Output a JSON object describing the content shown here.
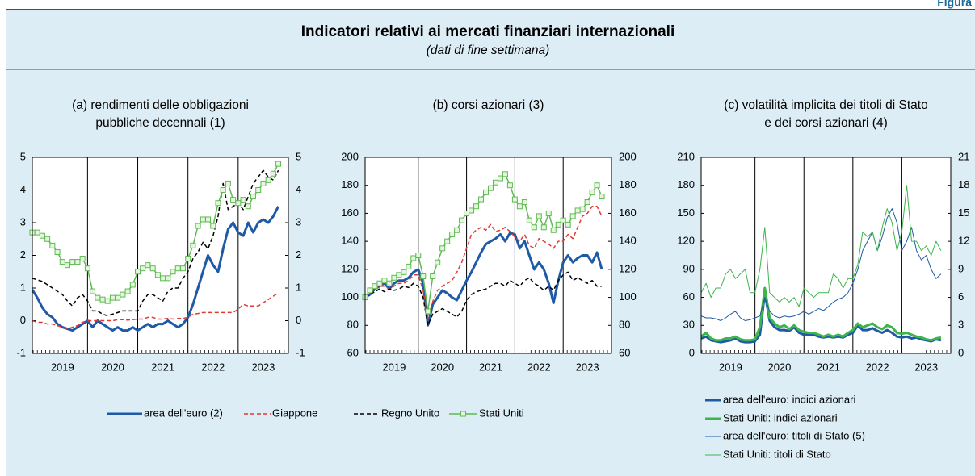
{
  "header": {
    "label": "Figura",
    "title": "Indicatori relativi ai mercati finanziari internazionali",
    "subtitle": "(dati di fine settimana)"
  },
  "chart_data": [
    {
      "type": "line",
      "title": [
        "(a) rendimenti delle obbligazioni",
        "pubbliche decennali (1)"
      ],
      "x": [
        2018.9,
        2019,
        2019.1,
        2019.2,
        2019.3,
        2019.4,
        2019.5,
        2019.6,
        2019.7,
        2019.8,
        2019.9,
        2020,
        2020.1,
        2020.2,
        2020.3,
        2020.4,
        2020.5,
        2020.6,
        2020.7,
        2020.8,
        2020.9,
        2021,
        2021.1,
        2021.2,
        2021.3,
        2021.4,
        2021.5,
        2021.6,
        2021.7,
        2021.8,
        2021.9,
        2022,
        2022.1,
        2022.2,
        2022.3,
        2022.4,
        2022.5,
        2022.6,
        2022.7,
        2022.8,
        2022.9,
        2023,
        2023.1,
        2023.2,
        2023.3,
        2023.4,
        2023.5,
        2023.6,
        2023.7,
        2023.8
      ],
      "xlim": [
        2018.9,
        2024
      ],
      "xticks": [
        {
          "value": 2019.5,
          "label": "2019"
        },
        {
          "value": 2020.5,
          "label": "2020"
        },
        {
          "value": 2021.5,
          "label": "2021"
        },
        {
          "value": 2022.5,
          "label": "2022"
        },
        {
          "value": 2023.5,
          "label": "2023"
        }
      ],
      "xgrid": [
        2020,
        2021,
        2022,
        2023
      ],
      "ylim": [
        -1,
        5
      ],
      "yticks": [
        -1,
        0,
        1,
        2,
        3,
        4,
        5
      ],
      "legend": "below",
      "series": [
        {
          "name": "area dell'euro (2)",
          "color": "#1f5aa6",
          "line": "solid",
          "weight": "heavy",
          "values": [
            0.95,
            0.7,
            0.4,
            0.2,
            0.1,
            -0.1,
            -0.2,
            -0.25,
            -0.3,
            -0.2,
            -0.1,
            0,
            -0.2,
            0,
            -0.1,
            -0.2,
            -0.3,
            -0.2,
            -0.3,
            -0.3,
            -0.2,
            -0.3,
            -0.2,
            -0.1,
            -0.2,
            -0.1,
            -0.1,
            0,
            -0.1,
            -0.2,
            -0.1,
            0.1,
            0.5,
            1,
            1.5,
            2,
            1.7,
            1.5,
            2.2,
            2.8,
            3,
            2.7,
            2.6,
            3,
            2.7,
            3,
            3.1,
            3,
            3.2,
            3.5
          ]
        },
        {
          "name": "Giappone",
          "color": "#e03a35",
          "line": "dashed",
          "weight": "normal",
          "values": [
            0,
            -0.05,
            -0.05,
            -0.1,
            -0.1,
            -0.15,
            -0.2,
            -0.25,
            -0.2,
            -0.15,
            -0.05,
            0,
            0,
            0,
            0,
            0,
            0,
            0.03,
            0.03,
            0.02,
            0.03,
            0.05,
            0.05,
            0.1,
            0.1,
            0.05,
            0.05,
            0.07,
            0.05,
            0.07,
            0.07,
            0.1,
            0.2,
            0.22,
            0.25,
            0.25,
            0.25,
            0.25,
            0.25,
            0.25,
            0.25,
            0.35,
            0.5,
            0.45,
            0.45,
            0.45,
            0.55,
            0.65,
            0.75,
            0.85
          ]
        },
        {
          "name": "Regno Unito",
          "color": "#000000",
          "line": "dashed",
          "weight": "normal",
          "values": [
            1.3,
            1.25,
            1.2,
            1.1,
            1,
            0.9,
            0.8,
            0.6,
            0.45,
            0.7,
            0.8,
            0.6,
            0.3,
            0.3,
            0.2,
            0.15,
            0.2,
            0.25,
            0.3,
            0.3,
            0.3,
            0.3,
            0.6,
            0.8,
            0.8,
            0.7,
            0.6,
            0.9,
            1,
            1,
            1.3,
            1.5,
            1.9,
            2.1,
            2.4,
            2.2,
            2.6,
            3.2,
            4.2,
            3.4,
            3.5,
            3.6,
            3.4,
            3.8,
            4.2,
            4.4,
            4.6,
            4.4,
            4.3,
            4.6
          ]
        },
        {
          "name": "Stati Uniti",
          "color": "#5dbb4f",
          "line": "solid",
          "weight": "normal",
          "marker": "square",
          "values": [
            2.7,
            2.7,
            2.6,
            2.5,
            2.3,
            2.1,
            1.8,
            1.7,
            1.8,
            1.8,
            1.9,
            1.6,
            0.9,
            0.7,
            0.65,
            0.6,
            0.7,
            0.7,
            0.8,
            0.9,
            1.1,
            1.5,
            1.6,
            1.7,
            1.6,
            1.4,
            1.3,
            1.3,
            1.5,
            1.6,
            1.6,
            1.9,
            2.3,
            2.9,
            3.1,
            3.1,
            2.9,
            3.6,
            4,
            4.2,
            3.7,
            3.6,
            3.7,
            3.5,
            3.8,
            4,
            4.2,
            4.3,
            4.5,
            4.8
          ]
        }
      ]
    },
    {
      "type": "line",
      "title": [
        "(b) corsi azionari (3)"
      ],
      "x": [
        2018.9,
        2019,
        2019.1,
        2019.2,
        2019.3,
        2019.4,
        2019.5,
        2019.6,
        2019.7,
        2019.8,
        2019.9,
        2020,
        2020.1,
        2020.2,
        2020.3,
        2020.4,
        2020.5,
        2020.6,
        2020.7,
        2020.8,
        2020.9,
        2021,
        2021.1,
        2021.2,
        2021.3,
        2021.4,
        2021.5,
        2021.6,
        2021.7,
        2021.8,
        2021.9,
        2022,
        2022.1,
        2022.2,
        2022.3,
        2022.4,
        2022.5,
        2022.6,
        2022.7,
        2022.8,
        2022.9,
        2023,
        2023.1,
        2023.2,
        2023.3,
        2023.4,
        2023.5,
        2023.6,
        2023.7,
        2023.8
      ],
      "xlim": [
        2018.9,
        2024
      ],
      "xticks": [
        {
          "value": 2019.5,
          "label": "2019"
        },
        {
          "value": 2020.5,
          "label": "2020"
        },
        {
          "value": 2021.5,
          "label": "2021"
        },
        {
          "value": 2022.5,
          "label": "2022"
        },
        {
          "value": 2023.5,
          "label": "2023"
        }
      ],
      "xgrid": [
        2020,
        2021,
        2022,
        2023
      ],
      "ylim": [
        60,
        200
      ],
      "yticks": [
        60,
        80,
        100,
        120,
        140,
        160,
        180,
        200
      ],
      "series": [
        {
          "color": "#1f5aa6",
          "line": "solid",
          "weight": "heavy",
          "values": [
            100,
            102,
            106,
            108,
            110,
            106,
            110,
            112,
            112,
            114,
            118,
            120,
            110,
            80,
            95,
            100,
            105,
            103,
            100,
            98,
            105,
            112,
            118,
            125,
            132,
            138,
            140,
            142,
            145,
            140,
            146,
            145,
            135,
            140,
            130,
            120,
            125,
            120,
            110,
            96,
            112,
            125,
            130,
            125,
            128,
            130,
            130,
            125,
            132,
            120
          ]
        },
        {
          "color": "#e03a35",
          "line": "dashed",
          "weight": "normal",
          "values": [
            100,
            103,
            106,
            108,
            108,
            106,
            108,
            110,
            110,
            112,
            116,
            116,
            105,
            85,
            97,
            105,
            108,
            110,
            112,
            118,
            125,
            135,
            145,
            148,
            150,
            148,
            152,
            147,
            148,
            150,
            147,
            143,
            140,
            145,
            137,
            135,
            142,
            140,
            138,
            135,
            140,
            140,
            145,
            142,
            150,
            158,
            160,
            165,
            165,
            158
          ]
        },
        {
          "color": "#000000",
          "line": "dashed",
          "weight": "normal",
          "values": [
            100,
            102,
            104,
            106,
            104,
            106,
            105,
            106,
            108,
            107,
            110,
            108,
            100,
            80,
            88,
            90,
            92,
            90,
            88,
            86,
            90,
            98,
            102,
            104,
            105,
            106,
            108,
            110,
            110,
            108,
            112,
            110,
            108,
            112,
            114,
            110,
            108,
            105,
            108,
            105,
            112,
            116,
            118,
            112,
            114,
            112,
            110,
            112,
            108,
            108
          ]
        },
        {
          "color": "#5dbb4f",
          "line": "solid",
          "weight": "normal",
          "marker": "square",
          "values": [
            100,
            105,
            108,
            110,
            112,
            110,
            114,
            116,
            118,
            122,
            128,
            130,
            115,
            90,
            115,
            125,
            135,
            140,
            145,
            148,
            155,
            160,
            162,
            165,
            170,
            175,
            178,
            182,
            185,
            188,
            180,
            170,
            165,
            168,
            155,
            150,
            158,
            150,
            160,
            148,
            152,
            155,
            152,
            158,
            162,
            163,
            168,
            175,
            180,
            172
          ]
        }
      ]
    },
    {
      "type": "line",
      "title": [
        "(c) volatilità implicita dei titoli di Stato",
        "e dei corsi azionari (4)"
      ],
      "x": [
        2018.9,
        2019,
        2019.1,
        2019.2,
        2019.3,
        2019.4,
        2019.5,
        2019.6,
        2019.7,
        2019.8,
        2019.9,
        2020,
        2020.1,
        2020.2,
        2020.3,
        2020.4,
        2020.5,
        2020.6,
        2020.7,
        2020.8,
        2020.9,
        2021,
        2021.1,
        2021.2,
        2021.3,
        2021.4,
        2021.5,
        2021.6,
        2021.7,
        2021.8,
        2021.9,
        2022,
        2022.1,
        2022.2,
        2022.3,
        2022.4,
        2022.5,
        2022.6,
        2022.7,
        2022.8,
        2022.9,
        2023,
        2023.1,
        2023.2,
        2023.3,
        2023.4,
        2023.5,
        2023.6,
        2023.7,
        2023.8
      ],
      "xlim": [
        2018.9,
        2024
      ],
      "xticks": [
        {
          "value": 2019.5,
          "label": "2019"
        },
        {
          "value": 2020.5,
          "label": "2020"
        },
        {
          "value": 2021.5,
          "label": "2021"
        },
        {
          "value": 2022.5,
          "label": "2022"
        },
        {
          "value": 2023.5,
          "label": "2023"
        }
      ],
      "xgrid": [
        2020,
        2021,
        2022,
        2023
      ],
      "ylim": [
        0,
        210
      ],
      "yticks": [
        0,
        30,
        60,
        90,
        120,
        150,
        180,
        210
      ],
      "y2lim": [
        0,
        21
      ],
      "y2ticks": [
        0,
        3,
        6,
        9,
        12,
        15,
        18,
        21
      ],
      "legend": "below",
      "series": [
        {
          "name": "area dell'euro: indici azionari",
          "color": "#1f5aa6",
          "line": "solid",
          "weight": "heavy",
          "values": [
            16,
            18,
            14,
            13,
            12,
            13,
            14,
            16,
            13,
            12,
            12,
            13,
            20,
            65,
            35,
            28,
            25,
            25,
            24,
            28,
            22,
            20,
            20,
            20,
            18,
            17,
            18,
            17,
            18,
            17,
            20,
            22,
            30,
            25,
            25,
            27,
            24,
            22,
            25,
            22,
            18,
            17,
            18,
            16,
            17,
            15,
            14,
            13,
            15,
            14
          ]
        },
        {
          "name": "Stati Uniti: indici azionari",
          "color": "#3db54a",
          "line": "solid",
          "weight": "heavy",
          "values": [
            18,
            22,
            16,
            14,
            14,
            16,
            16,
            18,
            15,
            14,
            14,
            15,
            28,
            70,
            38,
            32,
            28,
            30,
            26,
            30,
            25,
            23,
            22,
            22,
            20,
            18,
            20,
            18,
            20,
            18,
            22,
            25,
            32,
            28,
            30,
            32,
            28,
            26,
            30,
            28,
            22,
            21,
            22,
            20,
            18,
            17,
            15,
            14,
            16,
            17
          ]
        },
        {
          "name": "area dell'euro: titoli di Stato (5)",
          "color": "#1f5aa6",
          "line": "solid",
          "weight": "light",
          "axis": "y2",
          "values": [
            4,
            3.8,
            3.8,
            3.7,
            3.5,
            3.8,
            4.2,
            4.5,
            3.8,
            3.5,
            3.6,
            3.8,
            4,
            6,
            4.5,
            4,
            3.8,
            4,
            3.9,
            4,
            4.2,
            4.5,
            4.2,
            4.5,
            4.8,
            4.6,
            5,
            5.5,
            5.8,
            6,
            6.5,
            7.5,
            9,
            11,
            12,
            13,
            11,
            12.5,
            14.5,
            15.5,
            14,
            11,
            12,
            13.5,
            11,
            10,
            10.5,
            9,
            8,
            8.5
          ]
        },
        {
          "name": "Stati Uniti: titoli di Stato",
          "color": "#3db54a",
          "line": "solid",
          "weight": "light",
          "axis": "y2",
          "values": [
            6.5,
            7.5,
            6,
            7,
            7,
            8.5,
            9,
            8,
            8.5,
            9,
            6.5,
            6.5,
            9,
            13.5,
            6.5,
            6,
            5.5,
            6,
            5.5,
            6,
            5,
            7,
            6.5,
            6,
            6.5,
            6.5,
            6.5,
            8.5,
            8,
            7,
            8,
            8,
            9.5,
            13,
            12.5,
            13,
            11,
            13.5,
            15.5,
            14,
            11,
            13,
            18,
            12,
            12,
            11,
            11.5,
            10.5,
            12,
            11
          ]
        }
      ]
    }
  ]
}
